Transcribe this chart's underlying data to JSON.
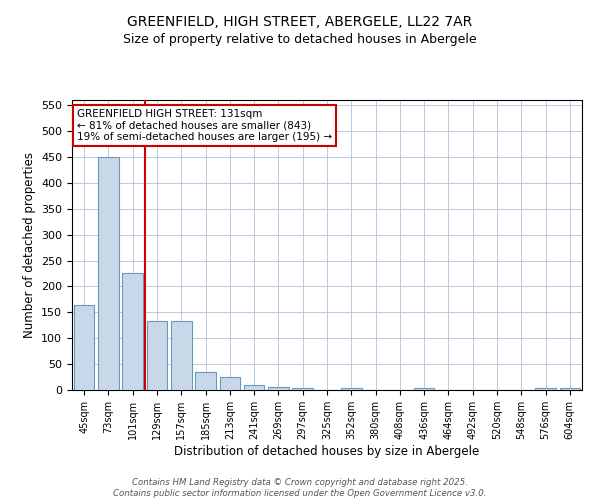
{
  "title1": "GREENFIELD, HIGH STREET, ABERGELE, LL22 7AR",
  "title2": "Size of property relative to detached houses in Abergele",
  "xlabel": "Distribution of detached houses by size in Abergele",
  "ylabel": "Number of detached properties",
  "categories": [
    "45sqm",
    "73sqm",
    "101sqm",
    "129sqm",
    "157sqm",
    "185sqm",
    "213sqm",
    "241sqm",
    "269sqm",
    "297sqm",
    "325sqm",
    "352sqm",
    "380sqm",
    "408sqm",
    "436sqm",
    "464sqm",
    "492sqm",
    "520sqm",
    "548sqm",
    "576sqm",
    "604sqm"
  ],
  "values": [
    165,
    450,
    225,
    133,
    133,
    35,
    25,
    10,
    5,
    3,
    0,
    3,
    0,
    0,
    3,
    0,
    0,
    0,
    0,
    3,
    3
  ],
  "bar_color": "#c8d8e8",
  "bar_edge_color": "#6699bb",
  "red_line_index": 3,
  "red_line_color": "#cc0000",
  "annotation_title": "GREENFIELD HIGH STREET: 131sqm",
  "annotation_line1": "← 81% of detached houses are smaller (843)",
  "annotation_line2": "19% of semi-detached houses are larger (195) →",
  "annotation_box_color": "#cc0000",
  "ylim": [
    0,
    560
  ],
  "yticks": [
    0,
    50,
    100,
    150,
    200,
    250,
    300,
    350,
    400,
    450,
    500,
    550
  ],
  "grid_color": "#b0c4de",
  "background_color": "#ffffff",
  "footer1": "Contains HM Land Registry data © Crown copyright and database right 2025.",
  "footer2": "Contains public sector information licensed under the Open Government Licence v3.0.",
  "title1_fontsize": 10,
  "title2_fontsize": 9,
  "bar_width": 0.85
}
